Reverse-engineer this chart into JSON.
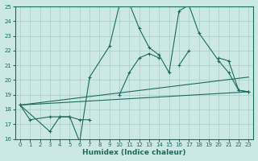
{
  "xlabel": "Humidex (Indice chaleur)",
  "background_color": "#cce8e5",
  "grid_color": "#aaccca",
  "line_color": "#1a6b5e",
  "xlim": [
    -0.5,
    23.5
  ],
  "ylim": [
    16,
    25
  ],
  "yticks": [
    16,
    17,
    18,
    19,
    20,
    21,
    22,
    23,
    24,
    25
  ],
  "xticks": [
    0,
    1,
    2,
    3,
    4,
    5,
    6,
    7,
    8,
    9,
    10,
    11,
    12,
    13,
    14,
    15,
    16,
    17,
    18,
    19,
    20,
    21,
    22,
    23
  ],
  "series1": {
    "x": [
      0,
      1,
      3,
      4,
      5,
      6,
      7,
      9,
      10,
      11,
      12,
      13,
      14,
      15,
      16,
      17,
      18,
      20,
      21,
      22,
      23
    ],
    "y": [
      18.3,
      17.3,
      17.5,
      17.5,
      17.5,
      15.8,
      20.2,
      22.3,
      25.1,
      25.2,
      23.5,
      22.2,
      21.7,
      20.5,
      24.7,
      25.1,
      23.2,
      21.3,
      20.5,
      19.3,
      19.2
    ]
  },
  "series2": {
    "segments": [
      {
        "x": [
          0,
          3,
          4,
          5,
          6,
          7
        ],
        "y": [
          18.3,
          16.5,
          17.5,
          17.5,
          17.3,
          17.3
        ]
      },
      {
        "x": [
          10,
          11,
          12,
          13,
          14
        ],
        "y": [
          19.0,
          20.5,
          21.5,
          21.8,
          21.5
        ]
      },
      {
        "x": [
          16,
          17
        ],
        "y": [
          21.0,
          22.0
        ]
      },
      {
        "x": [
          20,
          21,
          22,
          23
        ],
        "y": [
          21.5,
          21.3,
          19.3,
          19.2
        ]
      }
    ]
  },
  "line1": {
    "x": [
      0,
      23
    ],
    "y": [
      18.3,
      19.2
    ]
  },
  "line2": {
    "x": [
      0,
      23
    ],
    "y": [
      18.3,
      20.2
    ]
  }
}
